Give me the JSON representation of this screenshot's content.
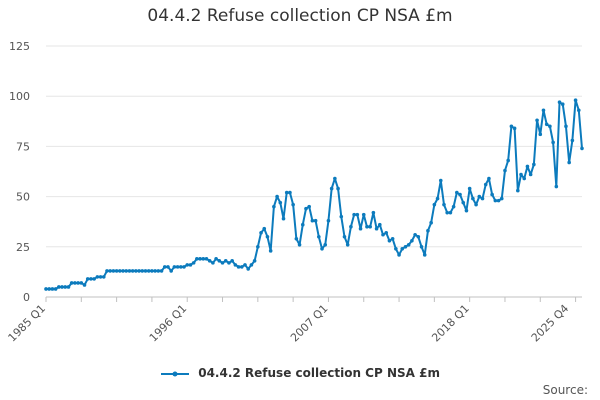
{
  "title": "04.4.2 Refuse collection CP NSA £m",
  "legend_label": "04.4.2 Refuse collection CP NSA £m",
  "source_label": "Source:",
  "colors": {
    "series": "#0c7bbd",
    "grid": "#e6e6e6",
    "axis": "#c0c0c0"
  },
  "chart_data": {
    "type": "line",
    "title": "04.4.2 Refuse collection CP NSA £m",
    "ylim": [
      0,
      125
    ],
    "yticks": [
      0,
      25,
      50,
      75,
      100,
      125
    ],
    "xticks": [
      {
        "label": "1985 Q1",
        "index": 0
      },
      {
        "label": "1996 Q1",
        "index": 44
      },
      {
        "label": "2007 Q1",
        "index": 88
      },
      {
        "label": "2018 Q1",
        "index": 132
      },
      {
        "label": "2025 Q4",
        "index": 163
      }
    ],
    "grid": true,
    "legend_position": "bottom",
    "series": [
      {
        "name": "04.4.2 Refuse collection CP NSA £m",
        "values": [
          4,
          4,
          4,
          4,
          5,
          5,
          5,
          5,
          7,
          7,
          7,
          7,
          6,
          9,
          9,
          9,
          10,
          10,
          10,
          13,
          13,
          13,
          13,
          13,
          13,
          13,
          13,
          13,
          13,
          13,
          13,
          13,
          13,
          13,
          13,
          13,
          13,
          15,
          15,
          13,
          15,
          15,
          15,
          15,
          16,
          16,
          17,
          19,
          19,
          19,
          19,
          18,
          17,
          19,
          18,
          17,
          18,
          17,
          18,
          16,
          15,
          15,
          16,
          14,
          16,
          18,
          25,
          32,
          34,
          30,
          23,
          45,
          50,
          47,
          39,
          52,
          52,
          46,
          29,
          26,
          36,
          44,
          45,
          38,
          38,
          30,
          24,
          26,
          38,
          54,
          59,
          54,
          40,
          30,
          26,
          35,
          41,
          41,
          34,
          41,
          35,
          35,
          42,
          34,
          36,
          31,
          32,
          28,
          29,
          24,
          21,
          24,
          25,
          26,
          28,
          31,
          30,
          25,
          21,
          33,
          37,
          46,
          49,
          58,
          46,
          42,
          42,
          45,
          52,
          51,
          47,
          43,
          54,
          49,
          46,
          50,
          49,
          56,
          59,
          51,
          48,
          48,
          49,
          63,
          68,
          85,
          84,
          53,
          61,
          59,
          65,
          61,
          66,
          88,
          81,
          93,
          86,
          85,
          77,
          55,
          97,
          96,
          85,
          67,
          78,
          98,
          93,
          74
        ]
      }
    ]
  }
}
